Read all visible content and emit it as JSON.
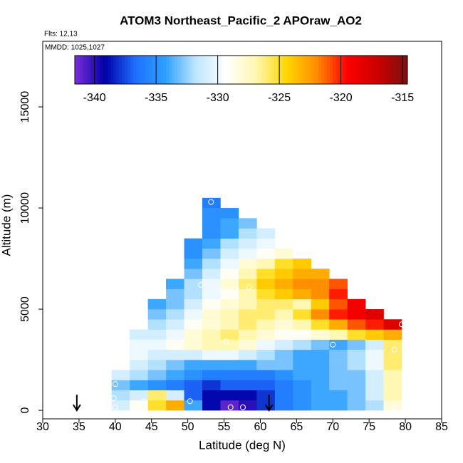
{
  "chart_data": {
    "type": "curtain",
    "title": "ATOM3 Northeast_Pacific_2 APOraw_AO2",
    "subtitle": "Flts: 12,13",
    "annotation": "MMDD: 1025,1027",
    "x_label": "Latitude (deg N)",
    "y_label": "Altitude (m)",
    "xlim": [
      30,
      85
    ],
    "ylim": [
      -420,
      18240
    ],
    "xticks": [
      30,
      35,
      40,
      45,
      50,
      55,
      60,
      65,
      70,
      75,
      80,
      85
    ],
    "yticks": [
      0,
      5000,
      10000,
      15000
    ],
    "lat_edges": [
      39.5,
      42,
      44.5,
      47,
      49.5,
      52,
      54.5,
      57,
      59.5,
      62,
      64.5,
      67,
      69.5,
      72,
      74.5,
      77,
      79.5
    ],
    "alt_edges": [
      0,
      500,
      1000,
      1500,
      2000,
      2500,
      3000,
      3500,
      4000,
      4500,
      5000,
      5500,
      6000,
      6500,
      7000,
      7500,
      8000,
      8500,
      9000,
      9500,
      10000,
      10500
    ],
    "values": [
      [
        -331,
        -329,
        -325,
        -323,
        -334,
        -339,
        -341,
        -340,
        -338,
        -336,
        -335,
        -334,
        -334,
        -333,
        -332,
        -328
      ],
      [
        -332,
        -331,
        -326,
        -331,
        -337,
        -339,
        -339,
        -339,
        -338,
        -336,
        -335,
        -334,
        -334,
        -333,
        -331,
        -327
      ],
      [
        -333,
        -334,
        -335,
        -336,
        -337,
        -338,
        -337,
        -337,
        -337,
        -336,
        -335,
        -334,
        -333,
        -333,
        -331,
        -327
      ],
      [
        -331,
        -332,
        -333,
        -334,
        -335,
        -336,
        -336,
        -336,
        -336,
        -335,
        -334,
        -334,
        -333,
        -333,
        -331,
        -327
      ],
      [
        null,
        -331,
        -332,
        -333,
        -334,
        -334,
        -334,
        -334,
        -333,
        -333,
        -334,
        -334,
        -333,
        -332,
        -330,
        -326
      ],
      [
        null,
        -330,
        -331,
        -331,
        -331,
        -330,
        -330,
        -331,
        -332,
        -333,
        -334,
        -334,
        -333,
        -332,
        -330,
        -326
      ],
      [
        null,
        -330,
        -330,
        -329,
        -328,
        -327,
        -327,
        -328,
        -330,
        -331,
        -332,
        -333,
        -334,
        -333,
        -331,
        -326
      ],
      [
        null,
        -331,
        -331,
        -330,
        -328,
        -327,
        -326,
        -327,
        -328,
        -329,
        -329,
        -328,
        -327,
        -325,
        -324,
        -323
      ],
      [
        null,
        null,
        -332,
        -331,
        -329,
        -328,
        -327,
        -326,
        -327,
        -328,
        -327,
        -325,
        -323,
        -321,
        -320,
        -318
      ],
      [
        null,
        null,
        -333,
        -332,
        -330,
        -328,
        -327,
        -326,
        -326,
        -327,
        -325,
        -322,
        -320,
        -319,
        -318,
        null
      ],
      [
        null,
        null,
        -334,
        -333,
        -331,
        -329,
        -328,
        -327,
        -326,
        -326,
        -327,
        -324,
        -321,
        -319,
        null,
        null
      ],
      [
        null,
        null,
        null,
        -333,
        -332,
        -330,
        -329,
        -327,
        -325,
        -324,
        -323,
        -322,
        -320,
        null,
        null,
        null
      ],
      [
        null,
        null,
        null,
        -334,
        -332,
        -330,
        -328,
        -326,
        -324,
        -323,
        -322,
        -322,
        -321,
        null,
        null,
        null
      ],
      [
        null,
        null,
        null,
        null,
        -333,
        -331,
        -329,
        -327,
        -325,
        -324,
        -323,
        -323,
        null,
        null,
        null,
        null
      ],
      [
        null,
        null,
        null,
        null,
        -334,
        -332,
        -330,
        -328,
        -327,
        -325,
        -324,
        null,
        null,
        null,
        null,
        null
      ],
      [
        null,
        null,
        null,
        null,
        -335,
        -333,
        -331,
        -330,
        -329,
        -328,
        null,
        null,
        null,
        null,
        null,
        null
      ],
      [
        null,
        null,
        null,
        null,
        -335,
        -334,
        -332,
        -331,
        -330,
        null,
        null,
        null,
        null,
        null,
        null,
        null
      ],
      [
        null,
        null,
        null,
        null,
        null,
        -335,
        -334,
        -332,
        -331,
        null,
        null,
        null,
        null,
        null,
        null,
        null
      ],
      [
        null,
        null,
        null,
        null,
        null,
        -335,
        -334,
        -333,
        null,
        null,
        null,
        null,
        null,
        null,
        null,
        null
      ],
      [
        null,
        null,
        null,
        null,
        null,
        -335,
        -335,
        null,
        null,
        null,
        null,
        null,
        null,
        null,
        null,
        null
      ],
      [
        null,
        null,
        null,
        null,
        null,
        -336,
        null,
        null,
        null,
        null,
        null,
        null,
        null,
        null,
        null,
        null
      ]
    ],
    "points": {
      "x": [
        53.2,
        51.8,
        58.5,
        55.3,
        70,
        79.5,
        78.5,
        40,
        39.8,
        40,
        44,
        50.3,
        55.9,
        57.6,
        78.5
      ],
      "y": [
        10300,
        6200,
        6100,
        3400,
        3250,
        4250,
        3000,
        1300,
        600,
        150,
        450,
        450,
        150,
        150,
        150
      ]
    },
    "arrows": [
      34.7,
      61.2
    ],
    "colorbar": {
      "lim": [
        -341.6,
        -314.6
      ],
      "ticks": [
        -340,
        -335,
        -330,
        -325,
        -320,
        -315
      ],
      "colors": [
        "#7b2fd9",
        "#0000a8",
        "#1e6fff",
        "#2fa0ff",
        "#bfe6ff",
        "#ffffff",
        "#fff7b0",
        "#ffd700",
        "#ff8c00",
        "#ff0000",
        "#cc0000",
        "#7a1010"
      ]
    }
  }
}
